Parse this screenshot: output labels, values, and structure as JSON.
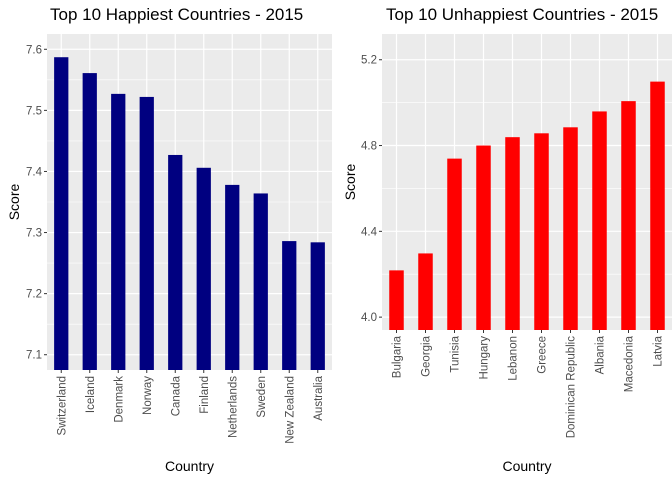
{
  "chart_data": [
    {
      "type": "bar",
      "title": "Top 10 Happiest Countries - 2015",
      "xlabel": "Country",
      "ylabel": "Score",
      "categories": [
        "Switzerland",
        "Iceland",
        "Denmark",
        "Norway",
        "Canada",
        "Finland",
        "Netherlands",
        "Sweden",
        "New Zealand",
        "Australia"
      ],
      "values": [
        7.587,
        7.561,
        7.527,
        7.522,
        7.427,
        7.406,
        7.378,
        7.364,
        7.286,
        7.284
      ],
      "ylim": [
        7.075,
        7.625
      ],
      "yticks": [
        7.1,
        7.2,
        7.3,
        7.4,
        7.5,
        7.6
      ],
      "ytick_labels": [
        "7.1",
        "7.2",
        "7.3",
        "7.4",
        "7.5",
        "7.6"
      ],
      "bar_color": "#000080",
      "panel_bg": "#ebebeb",
      "grid": true
    },
    {
      "type": "bar",
      "title": "Top 10 Unhappiest Countries - 2015",
      "xlabel": "Country",
      "ylabel": "Score",
      "categories": [
        "Bulgaria",
        "Georgia",
        "Tunisia",
        "Hungary",
        "Lebanon",
        "Greece",
        "Dominican Republic",
        "Albania",
        "Macedonia",
        "Latvia"
      ],
      "values": [
        4.218,
        4.297,
        4.739,
        4.8,
        4.839,
        4.857,
        4.885,
        4.959,
        5.007,
        5.098
      ],
      "ylim": [
        3.94,
        5.32
      ],
      "yticks": [
        4.0,
        4.4,
        4.8,
        5.2
      ],
      "ytick_labels": [
        "4.0",
        "4.4",
        "4.8",
        "5.2"
      ],
      "bar_color": "#ff0000",
      "panel_bg": "#ebebeb",
      "grid": true
    }
  ]
}
